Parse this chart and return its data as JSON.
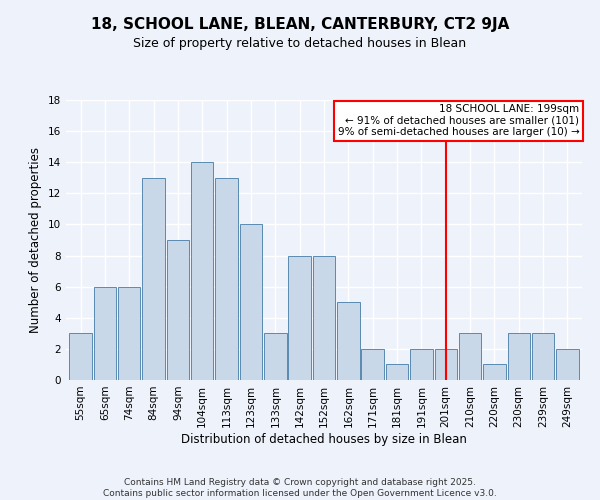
{
  "title": "18, SCHOOL LANE, BLEAN, CANTERBURY, CT2 9JA",
  "subtitle": "Size of property relative to detached houses in Blean",
  "xlabel": "Distribution of detached houses by size in Blean",
  "ylabel": "Number of detached properties",
  "footer_line1": "Contains HM Land Registry data © Crown copyright and database right 2025.",
  "footer_line2": "Contains public sector information licensed under the Open Government Licence v3.0.",
  "bin_labels": [
    "55sqm",
    "65sqm",
    "74sqm",
    "84sqm",
    "94sqm",
    "104sqm",
    "113sqm",
    "123sqm",
    "133sqm",
    "142sqm",
    "152sqm",
    "162sqm",
    "171sqm",
    "181sqm",
    "191sqm",
    "201sqm",
    "210sqm",
    "220sqm",
    "230sqm",
    "239sqm",
    "249sqm"
  ],
  "bar_values": [
    3,
    6,
    6,
    13,
    9,
    14,
    13,
    10,
    3,
    8,
    8,
    5,
    2,
    1,
    2,
    2,
    3,
    1,
    3,
    3,
    2
  ],
  "bar_color": "#c8d8e8",
  "bar_edge_color": "#5a8ab0",
  "vline_x": 15,
  "vline_color": "red",
  "annotation_title": "18 SCHOOL LANE: 199sqm",
  "annotation_line1": "← 91% of detached houses are smaller (101)",
  "annotation_line2": "9% of semi-detached houses are larger (10) →",
  "annotation_box_color": "white",
  "annotation_box_edge_color": "red",
  "ylim": [
    0,
    18
  ],
  "background_color": "#eef2fb",
  "grid_color": "white",
  "title_fontsize": 11,
  "subtitle_fontsize": 9,
  "axis_label_fontsize": 8.5,
  "tick_fontsize": 7.5,
  "annotation_fontsize": 7.5,
  "footer_fontsize": 6.5
}
